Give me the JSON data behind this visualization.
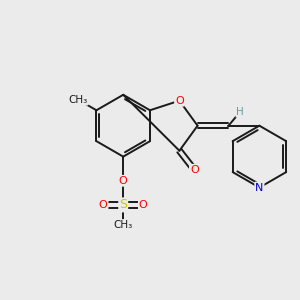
{
  "background_color": "#ebebeb",
  "bond_color": "#1a1a1a",
  "atom_colors": {
    "O": "#ff0000",
    "N": "#0000cc",
    "S": "#cccc00",
    "H": "#5f9ea0",
    "C": "#1a1a1a"
  },
  "figsize": [
    3.0,
    3.0
  ],
  "dpi": 100,
  "bond_lw": 1.4
}
